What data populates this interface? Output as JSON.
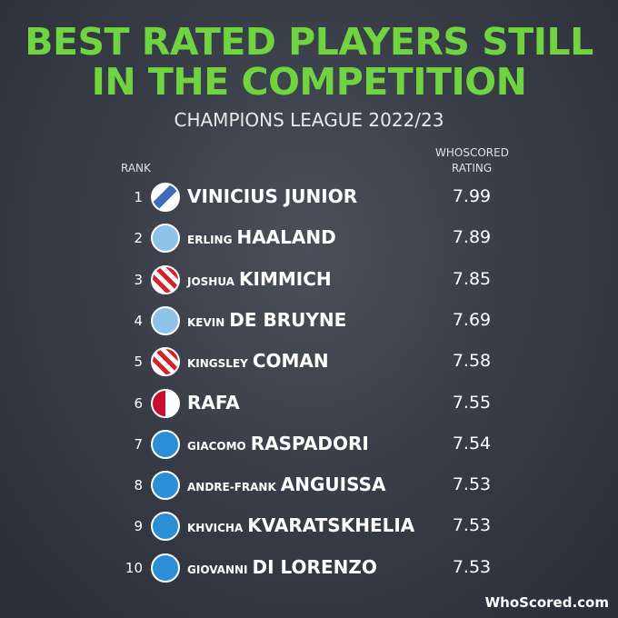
{
  "header": {
    "title_lines": [
      "BEST RATED PLAYERS STILL",
      "IN THE COMPETITION"
    ],
    "subtitle": "CHAMPIONS LEAGUE 2022/23"
  },
  "table": {
    "columns": {
      "rank": "RANK",
      "rating": [
        "WHOSCORED",
        "RATING"
      ]
    },
    "rows": [
      {
        "rank": 1,
        "last": "VINICIUS JUNIOR",
        "rating": 7.99
      },
      {
        "rank": 2,
        "first": "ERLING",
        "last": "HAALAND",
        "rating": 7.89
      },
      {
        "rank": 3,
        "first": "JOSHUA",
        "last": "KIMMICH",
        "rating": 7.85
      },
      {
        "rank": 4,
        "first": "KEVIN",
        "last": "DE BRUYNE",
        "rating": 7.69
      },
      {
        "rank": 5,
        "first": "KINGSLEY",
        "last": "COMAN",
        "rating": 7.58
      },
      {
        "rank": 6,
        "last": "RAFA",
        "rating": 7.55
      },
      {
        "rank": 7,
        "first": "GIACOMO",
        "last": "RASPADORI",
        "rating": 7.54
      },
      {
        "rank": 8,
        "first": "ANDRE-FRANK",
        "last": "ANGUISSA",
        "rating": 7.53
      },
      {
        "rank": 9,
        "first": "KHVICHA",
        "last": "KVARATSKHELIA",
        "rating": 7.53
      },
      {
        "rank": 10,
        "first": "GIOVANNI",
        "last": "DI LORENZO",
        "rating": 7.53
      }
    ]
  },
  "footer": {
    "brand": "WhoScored.com"
  }
}
